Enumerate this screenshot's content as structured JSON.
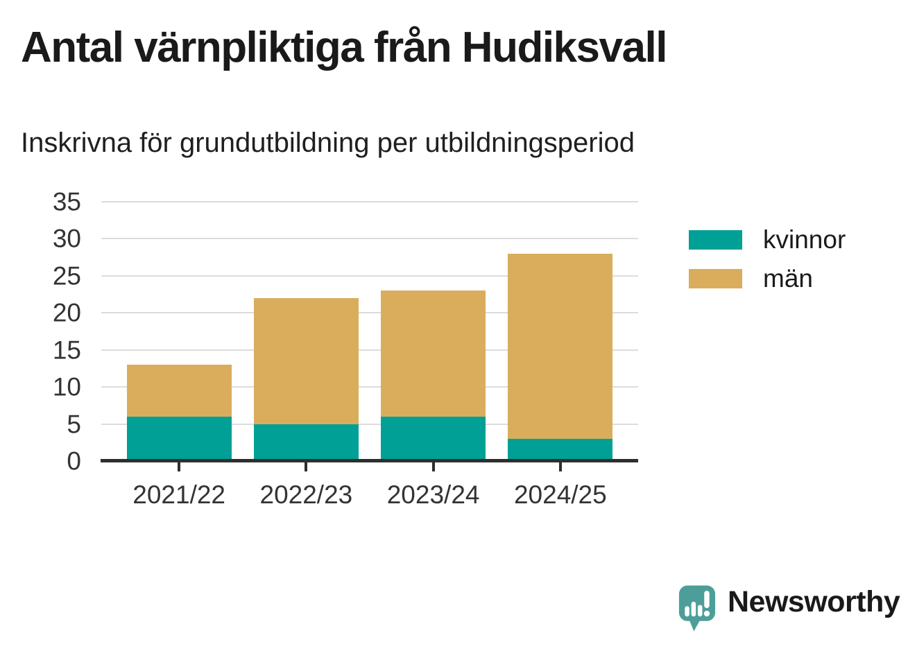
{
  "header": {
    "title": "Antal värnpliktiga från Hudiksvall",
    "subtitle": "Inskrivna för grundutbildning per utbildningsperiod"
  },
  "chart_data": {
    "type": "bar",
    "stacked": true,
    "title": "Antal värnpliktiga från Hudiksvall",
    "subtitle": "Inskrivna för grundutbildning per utbildningsperiod",
    "categories": [
      "2021/22",
      "2022/23",
      "2023/24",
      "2024/25"
    ],
    "series": [
      {
        "name": "kvinnor",
        "color": "#00A096",
        "values": [
          6,
          5,
          6,
          3
        ]
      },
      {
        "name": "män",
        "color": "#D9AD5C",
        "values": [
          7,
          17,
          17,
          25
        ]
      }
    ],
    "totals": [
      13,
      22,
      23,
      28
    ],
    "xlabel": "",
    "ylabel": "",
    "ylim": [
      0,
      35
    ],
    "yticks": [
      0,
      5,
      10,
      15,
      20,
      25,
      30,
      35
    ],
    "grid": "horizontal",
    "legend_position": "right"
  },
  "colors": {
    "grid": "#dcdcdc",
    "axis": "#2e2e2e",
    "tick_text": "#333333",
    "title_text": "#1a1a1a",
    "brand_teal": "#3D9896",
    "logo_bubble": "#4D9E99"
  },
  "footer": {
    "brand": "Newsworthy",
    "logo_icon": "speech-bubble-bar-chart-exclamation"
  }
}
